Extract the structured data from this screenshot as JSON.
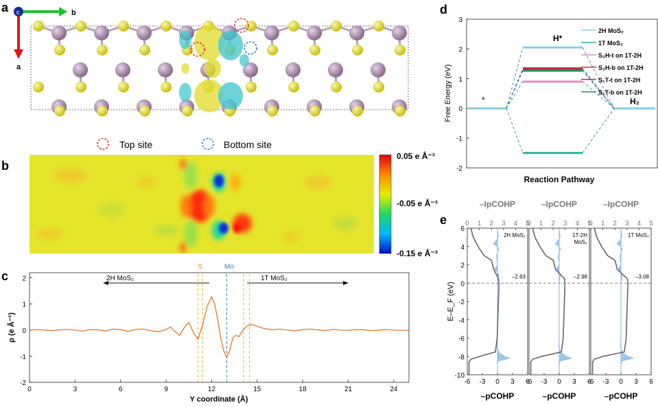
{
  "panels": {
    "a": {
      "label": "a",
      "axis_b": "b",
      "axis_a": "a",
      "axis_c": "c",
      "legend": [
        {
          "text": "Top site",
          "color": "#e53030"
        },
        {
          "text": "Bottom site",
          "color": "#2a7fbf"
        }
      ]
    },
    "b": {
      "label": "b",
      "colorbar_ticks": [
        "0.05 e Å⁻³",
        "-0.05 e Å⁻³",
        "-0.15 e Å⁻³"
      ]
    },
    "c": {
      "label": "c",
      "ylabel": "ρ (e Å⁻¹)",
      "xlabel": "Y coordinate (Å)",
      "left_arrow_label": "2H MoS₂",
      "right_arrow_label": "1T MoS₂",
      "marker_s": "S",
      "marker_mo": "Mo"
    },
    "d": {
      "label": "d",
      "ylabel": "Free Energy (eV)",
      "xlabel": "Reaction Pathway",
      "state_start": "*",
      "state_mid": "H*",
      "state_end": "H₂"
    },
    "e": {
      "label": "e",
      "top_label": "–IpCOHP",
      "bottom_label": "–pCOHP",
      "ylabel": "E–E_F (eV)",
      "subpanels": [
        {
          "name": "2H MoS₂",
          "name_line2": "",
          "value": "–2.63"
        },
        {
          "name": "1T-2H",
          "name_line2": "MoS₂",
          "value": "–2.98"
        },
        {
          "name": "1T MoS₂",
          "name_line2": "",
          "value": "–3.08"
        }
      ]
    }
  },
  "chart_data": [
    {
      "type": "line",
      "panel": "c",
      "xlabel": "Y coordinate (Å)",
      "ylabel": "ρ (e Å⁻¹)",
      "xlim": [
        0,
        25
      ],
      "ylim": [
        -2,
        2.2
      ],
      "xticks": [
        0,
        3,
        6,
        9,
        12,
        15,
        18,
        21,
        24
      ],
      "yticks": [
        -2,
        -1,
        0,
        1,
        2
      ],
      "vlines": {
        "S": [
          11.1,
          11.4,
          14.1,
          14.5
        ],
        "Mo": [
          13.0
        ]
      },
      "series": [
        {
          "color": "#e0701a",
          "x": [
            0,
            0.5,
            1,
            1.5,
            2,
            2.5,
            3,
            3.5,
            4,
            4.5,
            5,
            5.5,
            6,
            6.5,
            7,
            7.5,
            8,
            8.5,
            9,
            9.3,
            9.6,
            9.9,
            10.2,
            10.5,
            10.8,
            11.1,
            11.4,
            11.7,
            12,
            12.2,
            12.4,
            12.6,
            12.8,
            13,
            13.2,
            13.4,
            13.6,
            13.8,
            14,
            14.3,
            14.6,
            15,
            15.5,
            16,
            16.5,
            17,
            17.5,
            18,
            18.5,
            19,
            19.5,
            20,
            20.5,
            21,
            21.5,
            22,
            22.5,
            23,
            23.5,
            24,
            24.5,
            25
          ],
          "values": [
            0,
            0.02,
            0,
            -0.02,
            0.01,
            0.03,
            0,
            -0.04,
            0.02,
            0.01,
            -0.03,
            0.04,
            0.02,
            -0.05,
            0.03,
            0.04,
            -0.02,
            -0.06,
            0.02,
            0.12,
            -0.06,
            -0.2,
            0.1,
            0.3,
            -0.1,
            -0.35,
            0.2,
            0.9,
            1.28,
            1.0,
            0.4,
            -0.3,
            -0.8,
            -1.05,
            -0.75,
            -0.3,
            -0.2,
            -0.25,
            -0.05,
            0.15,
            0.22,
            0.15,
            0.05,
            0.02,
            0.04,
            0,
            -0.03,
            0.02,
            0.04,
            0.01,
            -0.02,
            0.03,
            0,
            -0.01,
            0.02,
            0.01,
            -0.02,
            0,
            0.02,
            0,
            -0.01,
            0
          ]
        }
      ]
    },
    {
      "type": "line",
      "panel": "d",
      "ylabel": "Free Energy (eV)",
      "xlabel": "Reaction Pathway",
      "ylim": [
        -2,
        3
      ],
      "yticks": [
        -2,
        -1,
        0,
        1,
        2,
        3
      ],
      "states": [
        "*",
        "H*",
        "H₂"
      ],
      "series": [
        {
          "name": "2H MoS₂",
          "color": "#87ceeb",
          "dG": 2.05
        },
        {
          "name": "1T MoS₂",
          "color": "#2fb39a",
          "dG": -1.5
        },
        {
          "name": "S₂H-t on 1T-2H",
          "color": "#e58cc2",
          "dG": 0.9
        },
        {
          "name": "S₂H-b on 1T-2H",
          "color": "#d93232",
          "dG": 1.35
        },
        {
          "name": "S₁T-t on 1T-2H",
          "color": "#9b2f70",
          "dG": 1.3
        },
        {
          "name": "S₁T-b on 1T-2H",
          "color": "#2e8b57",
          "dG": 1.27
        }
      ]
    },
    {
      "type": "area",
      "panel": "e",
      "top_label": "–IpCOHP",
      "bottom_label": "–pCOHP",
      "ylabel": "E–E_F (eV)",
      "ylim": [
        -10,
        6
      ],
      "yticks": [
        -10,
        -8,
        -6,
        -4,
        -2,
        0,
        2,
        4,
        6
      ],
      "bottom_xlim": [
        -6,
        6
      ],
      "bottom_xticks": [
        -6,
        -3,
        0,
        3,
        6
      ],
      "top_xlim": [
        0,
        5
      ],
      "top_xticks": [
        0,
        1,
        2,
        3,
        4,
        5
      ],
      "series": [
        {
          "name": "2H MoS₂",
          "ICOHP": 2.63
        },
        {
          "name": "1T-2H MoS₂",
          "ICOHP": 2.98
        },
        {
          "name": "1T MoS₂",
          "ICOHP": 3.08
        }
      ]
    }
  ],
  "colors": {
    "mo": "#a58aa5",
    "s": "#e6e02a",
    "iso_yellow": "#e0dc30",
    "iso_cyan": "#3fc6cc"
  }
}
